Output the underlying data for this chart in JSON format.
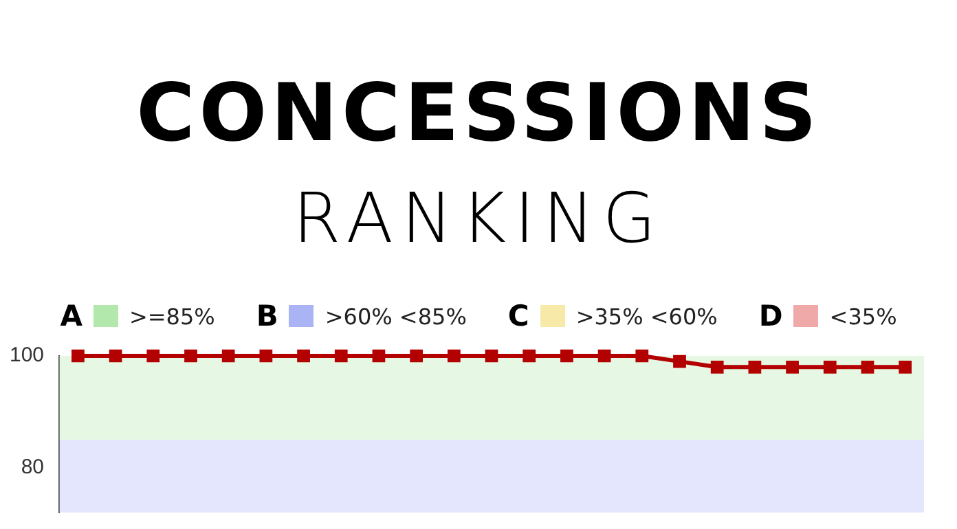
{
  "chart_data": {
    "type": "line",
    "title": "CONCESSIONS",
    "subtitle": "RANKING",
    "categories": [
      null,
      null,
      null,
      null,
      null,
      null,
      null,
      null,
      null,
      null,
      null,
      null,
      null,
      null,
      null,
      null,
      null,
      null,
      null,
      null,
      null,
      null,
      null
    ],
    "series": [
      {
        "color": "#b30000",
        "values": [
          100,
          100,
          100,
          100,
          100,
          100,
          100,
          100,
          100,
          100,
          100,
          100,
          100,
          100,
          100,
          100,
          99,
          98,
          98,
          98,
          98,
          98,
          98
        ]
      }
    ],
    "ylim": [
      72,
      100
    ],
    "yticks": [
      100,
      80
    ],
    "marker": "square",
    "line_style": "solid",
    "tick_labels": "y",
    "bands": [
      {
        "axis": "y",
        "from": 85,
        "to": 100,
        "label": "A",
        "color": "#b2e8ab"
      },
      {
        "axis": "y",
        "from": 60,
        "to": 85,
        "label": "B",
        "color": "#aab4f5"
      }
    ],
    "legend": "top",
    "annotations": [
      ">=85%",
      ">60% <85%",
      "C >35% <60%",
      "D <35%"
    ]
  }
}
